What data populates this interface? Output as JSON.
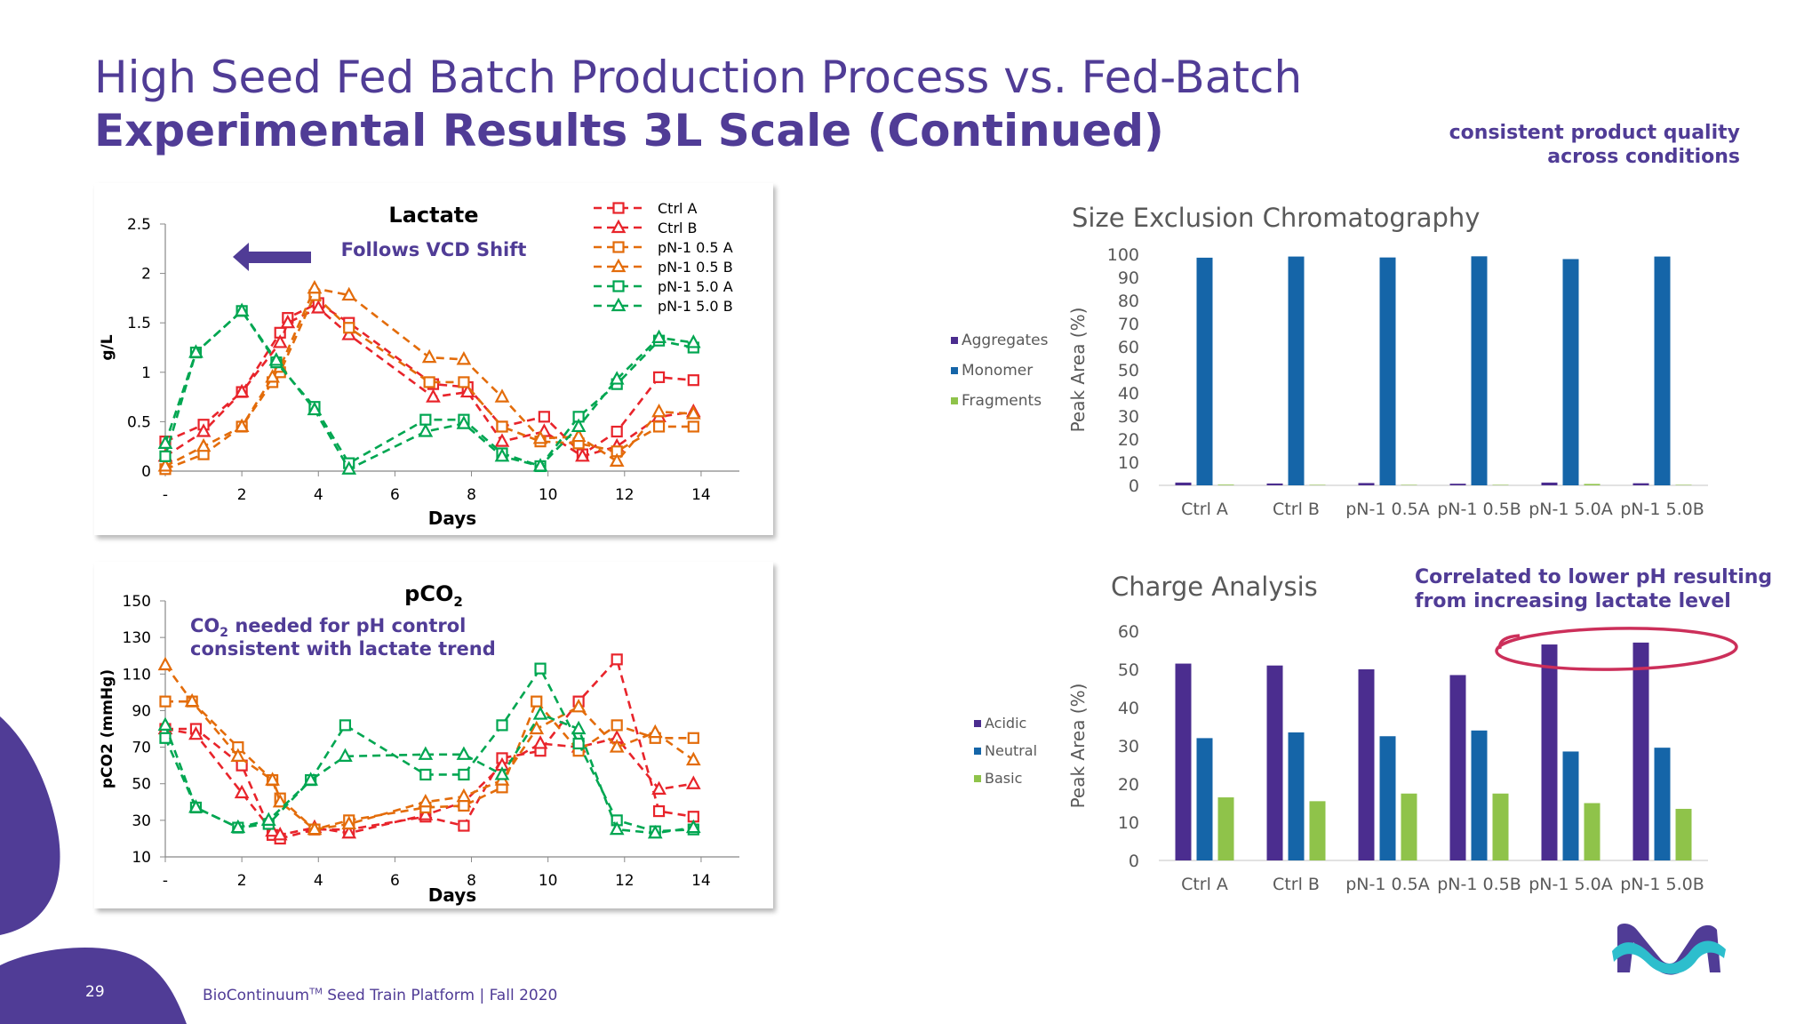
{
  "slide": {
    "title_line1": "High Seed Fed Batch Production Process vs. Fed-Batch",
    "title_line2": "Experimental Results 3L Scale (Continued)",
    "note_top": "consistent product quality across conditions",
    "note_charge": "Correlated to lower pH resulting from increasing lactate level",
    "footer_brand": "BioContinuum",
    "footer_tm": "TM",
    "footer_rest": " Seed Train Platform | Fall 2020",
    "page_number": "29",
    "colors": {
      "title": "#503c96",
      "purple_shape": "#503c96",
      "highlight_ellipse": "#cc2f5a"
    },
    "logo_icon": "merck-logo-icon"
  },
  "chart_data": [
    {
      "id": "lactate",
      "type": "line",
      "title": "Lactate",
      "annotation": "Follows VCD Shift",
      "annotation_arrow": "left-arrow-icon",
      "xlabel": "Days",
      "ylabel": "g/L",
      "xlim": [
        0,
        15
      ],
      "ylim": [
        0,
        2.5
      ],
      "x_ticks": [
        "-",
        "2",
        "4",
        "6",
        "8",
        "10",
        "12",
        "14"
      ],
      "y_ticks": [
        "0",
        "0.5",
        "1",
        "1.5",
        "2",
        "2.5"
      ],
      "legend_position": "top-right",
      "grid": false,
      "series": [
        {
          "name": "Ctrl A",
          "color": "#e8242b",
          "marker": "square",
          "x": [
            0,
            1,
            2,
            3,
            3.2,
            4,
            4.8,
            7,
            7.9,
            8.8,
            9.9,
            10.9,
            11.8,
            12.9,
            13.8
          ],
          "y": [
            0.3,
            0.47,
            0.8,
            1.4,
            1.55,
            1.7,
            1.5,
            0.88,
            0.85,
            0.45,
            0.55,
            0.17,
            0.4,
            0.95,
            0.92
          ]
        },
        {
          "name": "Ctrl B",
          "color": "#e8242b",
          "marker": "triangle",
          "x": [
            0,
            1,
            2,
            3,
            3.2,
            4,
            4.8,
            7,
            7.9,
            8.8,
            9.9,
            10.9,
            11.8,
            12.9,
            13.8
          ],
          "y": [
            0.15,
            0.4,
            0.8,
            1.3,
            1.5,
            1.65,
            1.38,
            0.75,
            0.8,
            0.3,
            0.4,
            0.15,
            0.25,
            0.55,
            0.6
          ]
        },
        {
          "name": "pN-1 0.5 A",
          "color": "#e36c0a",
          "marker": "square",
          "x": [
            0,
            1,
            2,
            2.8,
            3,
            3.9,
            4.8,
            6.9,
            7.8,
            8.8,
            9.8,
            10.8,
            11.8,
            12.9,
            13.8
          ],
          "y": [
            0.02,
            0.17,
            0.45,
            0.9,
            1.0,
            1.78,
            1.45,
            0.9,
            0.9,
            0.45,
            0.3,
            0.28,
            0.2,
            0.45,
            0.45
          ]
        },
        {
          "name": "pN-1 0.5 B",
          "color": "#e36c0a",
          "marker": "triangle",
          "x": [
            0,
            1,
            2,
            2.8,
            3,
            3.9,
            4.8,
            6.9,
            7.8,
            8.8,
            9.8,
            10.8,
            11.8,
            12.9,
            13.8
          ],
          "y": [
            0.05,
            0.25,
            0.45,
            0.95,
            1.05,
            1.85,
            1.78,
            1.15,
            1.13,
            0.75,
            0.33,
            0.35,
            0.1,
            0.6,
            0.58
          ]
        },
        {
          "name": "pN-1 5.0 A",
          "color": "#00a651",
          "marker": "square",
          "x": [
            0,
            0.8,
            2,
            2.9,
            3.9,
            4.8,
            6.8,
            7.8,
            8.8,
            9.8,
            10.8,
            11.8,
            12.9,
            13.8
          ],
          "y": [
            0.15,
            1.2,
            1.62,
            1.1,
            0.65,
            0.08,
            0.52,
            0.52,
            0.18,
            0.05,
            0.55,
            0.88,
            1.32,
            1.25
          ]
        },
        {
          "name": "pN-1 5.0 B",
          "color": "#00a651",
          "marker": "triangle",
          "x": [
            0,
            0.8,
            2,
            2.9,
            3.9,
            4.8,
            6.8,
            7.8,
            8.8,
            9.8,
            10.8,
            11.8,
            12.9,
            13.8
          ],
          "y": [
            0.28,
            1.2,
            1.62,
            1.12,
            0.62,
            0.02,
            0.4,
            0.48,
            0.15,
            0.05,
            0.45,
            0.93,
            1.35,
            1.3
          ]
        }
      ]
    },
    {
      "id": "pco2",
      "type": "line",
      "title": "pCO",
      "title_sub": "2",
      "annotation_line1_a": "CO",
      "annotation_line1_sub": "2",
      "annotation_line1_b": " needed for pH control",
      "annotation_line2": "consistent with lactate trend",
      "xlabel": "Days",
      "ylabel": "pCO2 (mmHg)",
      "xlim": [
        0,
        15
      ],
      "ylim": [
        10,
        150
      ],
      "x_ticks": [
        "-",
        "2",
        "4",
        "6",
        "8",
        "10",
        "12",
        "14"
      ],
      "y_ticks": [
        "10",
        "30",
        "50",
        "70",
        "90",
        "110",
        "130",
        "150"
      ],
      "grid": false,
      "series": [
        {
          "name": "Ctrl A",
          "color": "#e8242b",
          "marker": "square",
          "x": [
            0,
            0.8,
            2,
            2.8,
            3,
            3.9,
            4.8,
            6.8,
            7.8,
            8.8,
            9.8,
            10.8,
            11.8,
            12.9,
            13.8
          ],
          "y": [
            80,
            80,
            60,
            22,
            20,
            25,
            25,
            32,
            27,
            64,
            68,
            95,
            118,
            35,
            32
          ]
        },
        {
          "name": "Ctrl B",
          "color": "#e8242b",
          "marker": "triangle",
          "x": [
            0,
            0.8,
            2,
            2.8,
            3,
            3.9,
            4.8,
            6.8,
            7.8,
            8.8,
            9.8,
            10.8,
            11.8,
            12.9,
            13.8
          ],
          "y": [
            80,
            77,
            45,
            24,
            22,
            26,
            23,
            33,
            40,
            60,
            72,
            70,
            75,
            47,
            50
          ]
        },
        {
          "name": "pN-1 0.5 A",
          "color": "#e36c0a",
          "marker": "square",
          "x": [
            0,
            0.7,
            1.9,
            2.8,
            3,
            3.9,
            4.8,
            6.8,
            7.8,
            8.8,
            9.7,
            10.8,
            11.8,
            12.8,
            13.8
          ],
          "y": [
            95,
            95,
            70,
            52,
            42,
            25,
            30,
            37,
            38,
            48,
            95,
            68,
            82,
            75,
            75
          ]
        },
        {
          "name": "pN-1 0.5 B",
          "color": "#e36c0a",
          "marker": "triangle",
          "x": [
            0,
            0.7,
            1.9,
            2.8,
            3,
            3.9,
            4.8,
            6.8,
            7.8,
            8.8,
            9.7,
            10.8,
            11.8,
            12.8,
            13.8
          ],
          "y": [
            115,
            95,
            65,
            52,
            40,
            25,
            28,
            40,
            43,
            52,
            80,
            92,
            70,
            78,
            63
          ]
        },
        {
          "name": "pN-1 5.0 A",
          "color": "#00a651",
          "marker": "square",
          "x": [
            0,
            0.8,
            1.9,
            2.7,
            3.8,
            4.7,
            6.8,
            7.8,
            8.8,
            9.8,
            10.8,
            11.8,
            12.8,
            13.8
          ],
          "y": [
            75,
            37,
            26,
            28,
            52,
            82,
            55,
            55,
            82,
            113,
            72,
            30,
            24,
            25
          ]
        },
        {
          "name": "pN-1 5.0 B",
          "color": "#00a651",
          "marker": "triangle",
          "x": [
            0,
            0.8,
            1.9,
            2.7,
            3.8,
            4.7,
            6.8,
            7.8,
            8.8,
            9.8,
            10.8,
            11.8,
            12.8,
            13.8
          ],
          "y": [
            82,
            37,
            26,
            30,
            52,
            65,
            66,
            66,
            55,
            88,
            80,
            25,
            23,
            26
          ]
        }
      ]
    },
    {
      "id": "sec",
      "type": "bar",
      "title": "Size Exclusion Chromatography",
      "ylabel": "Peak Area (%)",
      "xlabel": "",
      "ylim": [
        0,
        100
      ],
      "y_ticks": [
        "0",
        "10",
        "20",
        "30",
        "40",
        "50",
        "60",
        "70",
        "80",
        "90",
        "100"
      ],
      "categories": [
        "Ctrl A",
        "Ctrl B",
        "pN-1 0.5A",
        "pN-1 0.5B",
        "pN-1 5.0A",
        "pN-1 5.0B"
      ],
      "legend_position": "left",
      "series": [
        {
          "name": "Aggregates",
          "color": "#4b2d8f",
          "values": [
            1.2,
            0.8,
            1.0,
            0.7,
            1.2,
            0.9
          ]
        },
        {
          "name": "Monomer",
          "color": "#1565a8",
          "values": [
            98.5,
            99.0,
            98.6,
            99.1,
            97.9,
            99.0
          ]
        },
        {
          "name": "Fragments",
          "color": "#8fc34a",
          "values": [
            0.3,
            0.2,
            0.2,
            0.2,
            0.6,
            0.2
          ]
        }
      ]
    },
    {
      "id": "charge",
      "type": "bar",
      "title": "Charge Analysis",
      "ylabel": "Peak Area (%)",
      "xlabel": "",
      "ylim": [
        0,
        60
      ],
      "y_ticks": [
        "0",
        "10",
        "20",
        "30",
        "40",
        "50",
        "60"
      ],
      "categories": [
        "Ctrl A",
        "Ctrl B",
        "pN-1 0.5A",
        "pN-1 0.5B",
        "pN-1 5.0A",
        "pN-1 5.0B"
      ],
      "legend_position": "left",
      "series": [
        {
          "name": "Acidic",
          "color": "#4b2d8f",
          "values": [
            51.5,
            51,
            50,
            48.5,
            56.5,
            57
          ]
        },
        {
          "name": "Neutral",
          "color": "#1565a8",
          "values": [
            32,
            33.5,
            32.5,
            34,
            28.5,
            29.5
          ]
        },
        {
          "name": "Basic",
          "color": "#8fc34a",
          "values": [
            16.5,
            15.5,
            17.5,
            17.5,
            15,
            13.5
          ]
        }
      ]
    }
  ]
}
